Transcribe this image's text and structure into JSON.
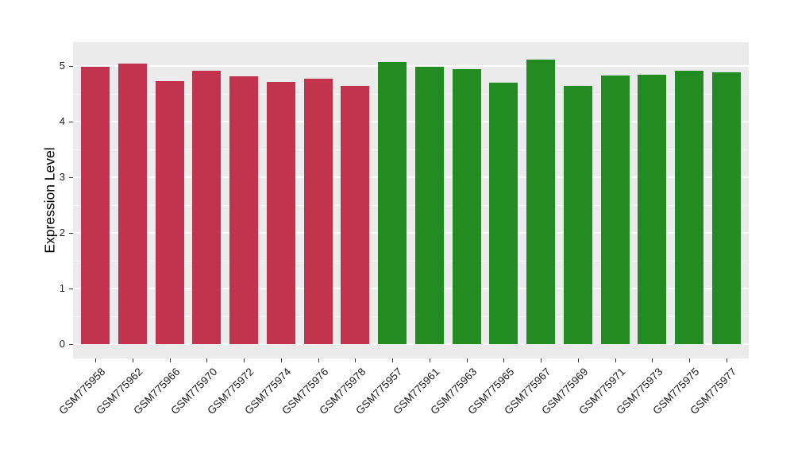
{
  "chart_data": {
    "type": "bar",
    "title": "",
    "xlabel": "",
    "ylabel": "Expression Level",
    "ylim": [
      0,
      5.43
    ],
    "yticks": [
      0,
      1,
      2,
      3,
      4,
      5
    ],
    "grid": true,
    "legend": "none",
    "panel_background": "#EBEBEB",
    "gridline_color": "#FFFFFF",
    "axis_text_color": "#1A1A1A",
    "group_colors": {
      "left_group": "#C2334D",
      "right_group": "#228B22"
    },
    "categories": [
      "GSM775958",
      "GSM775962",
      "GSM775966",
      "GSM775970",
      "GSM775972",
      "GSM775974",
      "GSM775976",
      "GSM775978",
      "GSM775957",
      "GSM775961",
      "GSM775963",
      "GSM775965",
      "GSM775967",
      "GSM775969",
      "GSM775971",
      "GSM775973",
      "GSM775975",
      "GSM775977"
    ],
    "values": [
      4.99,
      5.04,
      4.73,
      4.92,
      4.82,
      4.72,
      4.77,
      4.65,
      5.07,
      4.98,
      4.95,
      4.7,
      5.11,
      4.64,
      4.83,
      4.85,
      4.91,
      4.88
    ],
    "bar_colors": [
      "#C2334D",
      "#C2334D",
      "#C2334D",
      "#C2334D",
      "#C2334D",
      "#C2334D",
      "#C2334D",
      "#C2334D",
      "#228B22",
      "#228B22",
      "#228B22",
      "#228B22",
      "#228B22",
      "#228B22",
      "#228B22",
      "#228B22",
      "#228B22",
      "#228B22"
    ]
  }
}
